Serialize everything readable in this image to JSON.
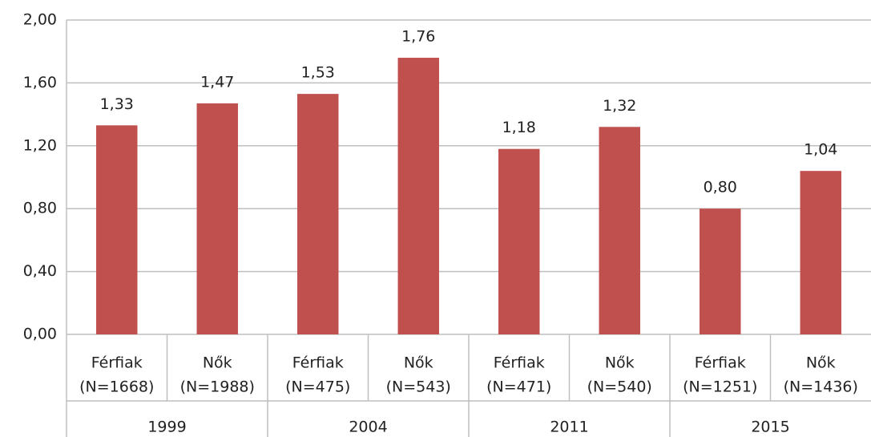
{
  "chart_data": {
    "type": "bar",
    "categories": [
      [
        "Férfiak",
        "(N=1668)"
      ],
      [
        "Nők",
        "(N=1988)"
      ],
      [
        "Férfiak",
        "(N=475)"
      ],
      [
        "Nők",
        "(N=543)"
      ],
      [
        "Férfiak",
        "(N=471)"
      ],
      [
        "Nők",
        "(N=540)"
      ],
      [
        "Férfiak",
        "(N=1251)"
      ],
      [
        "Nők",
        "(N=1436)"
      ]
    ],
    "groups": [
      "1999",
      "2004",
      "2011",
      "2015"
    ],
    "values": [
      1.33,
      1.47,
      1.53,
      1.76,
      1.18,
      1.32,
      0.8,
      1.04
    ],
    "value_labels": [
      "1,33",
      "1,47",
      "1,53",
      "1,76",
      "1,18",
      "1,32",
      "0,80",
      "1,04"
    ],
    "color": "#c0504d",
    "ylim": [
      0,
      2
    ],
    "yticks": [
      {
        "value": 0,
        "label": "0,00"
      },
      {
        "value": 0.4,
        "label": "0,40"
      },
      {
        "value": 0.8,
        "label": "0,80"
      },
      {
        "value": 1.2,
        "label": "1,20"
      },
      {
        "value": 1.6,
        "label": "1,60"
      },
      {
        "value": 2,
        "label": "2,00"
      }
    ],
    "grid": true
  }
}
